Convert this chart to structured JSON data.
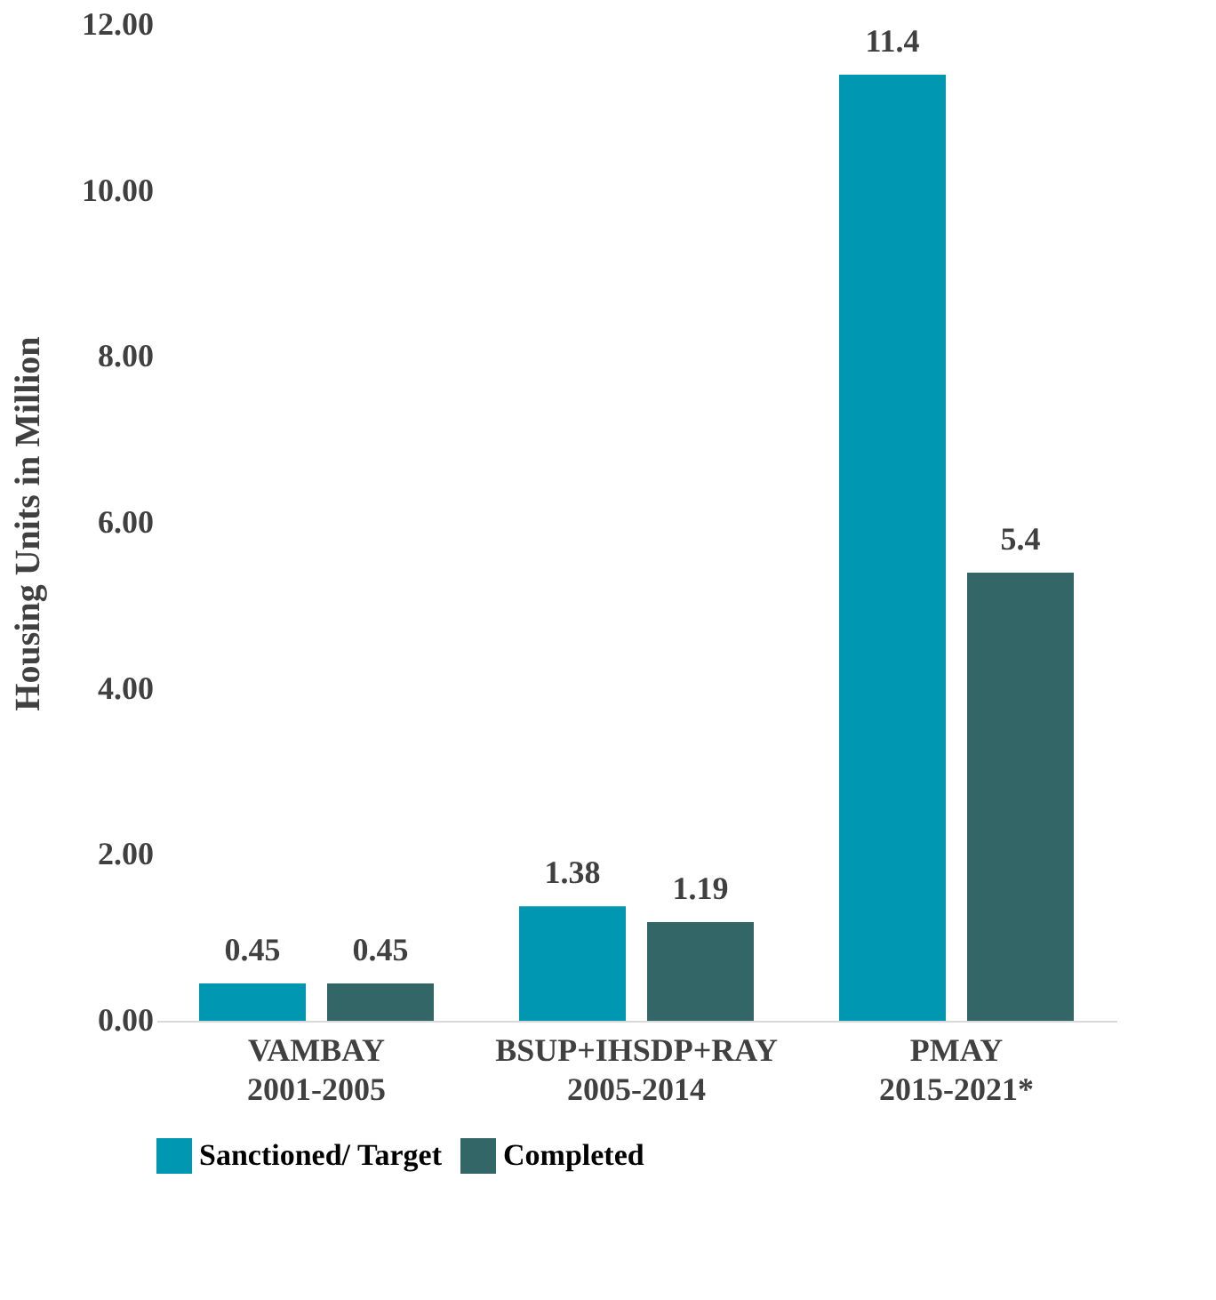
{
  "chart_data": {
    "type": "bar",
    "ylabel": "Housing Units in Million",
    "categories": [
      "VAMBAY\n2001-2005",
      "BSUP+IHSDP+RAY\n2005-2014",
      "PMAY\n2015-2021*"
    ],
    "series": [
      {
        "name": "Sanctioned/ Target",
        "color": "#0097b2",
        "values": [
          0.45,
          1.38,
          11.4
        ]
      },
      {
        "name": "Completed",
        "color": "#336666",
        "values": [
          0.45,
          1.19,
          5.4
        ]
      }
    ],
    "ylim": [
      0,
      12
    ],
    "yticks": [
      {
        "value": 0,
        "label": "0.00"
      },
      {
        "value": 2,
        "label": "2.00"
      },
      {
        "value": 4,
        "label": "4.00"
      },
      {
        "value": 6,
        "label": "6.00"
      },
      {
        "value": 8,
        "label": "8.00"
      },
      {
        "value": 10,
        "label": "10.00"
      },
      {
        "value": 12,
        "label": "12.00"
      }
    ],
    "grid": false,
    "legend": "bottom",
    "data_labels": true
  }
}
